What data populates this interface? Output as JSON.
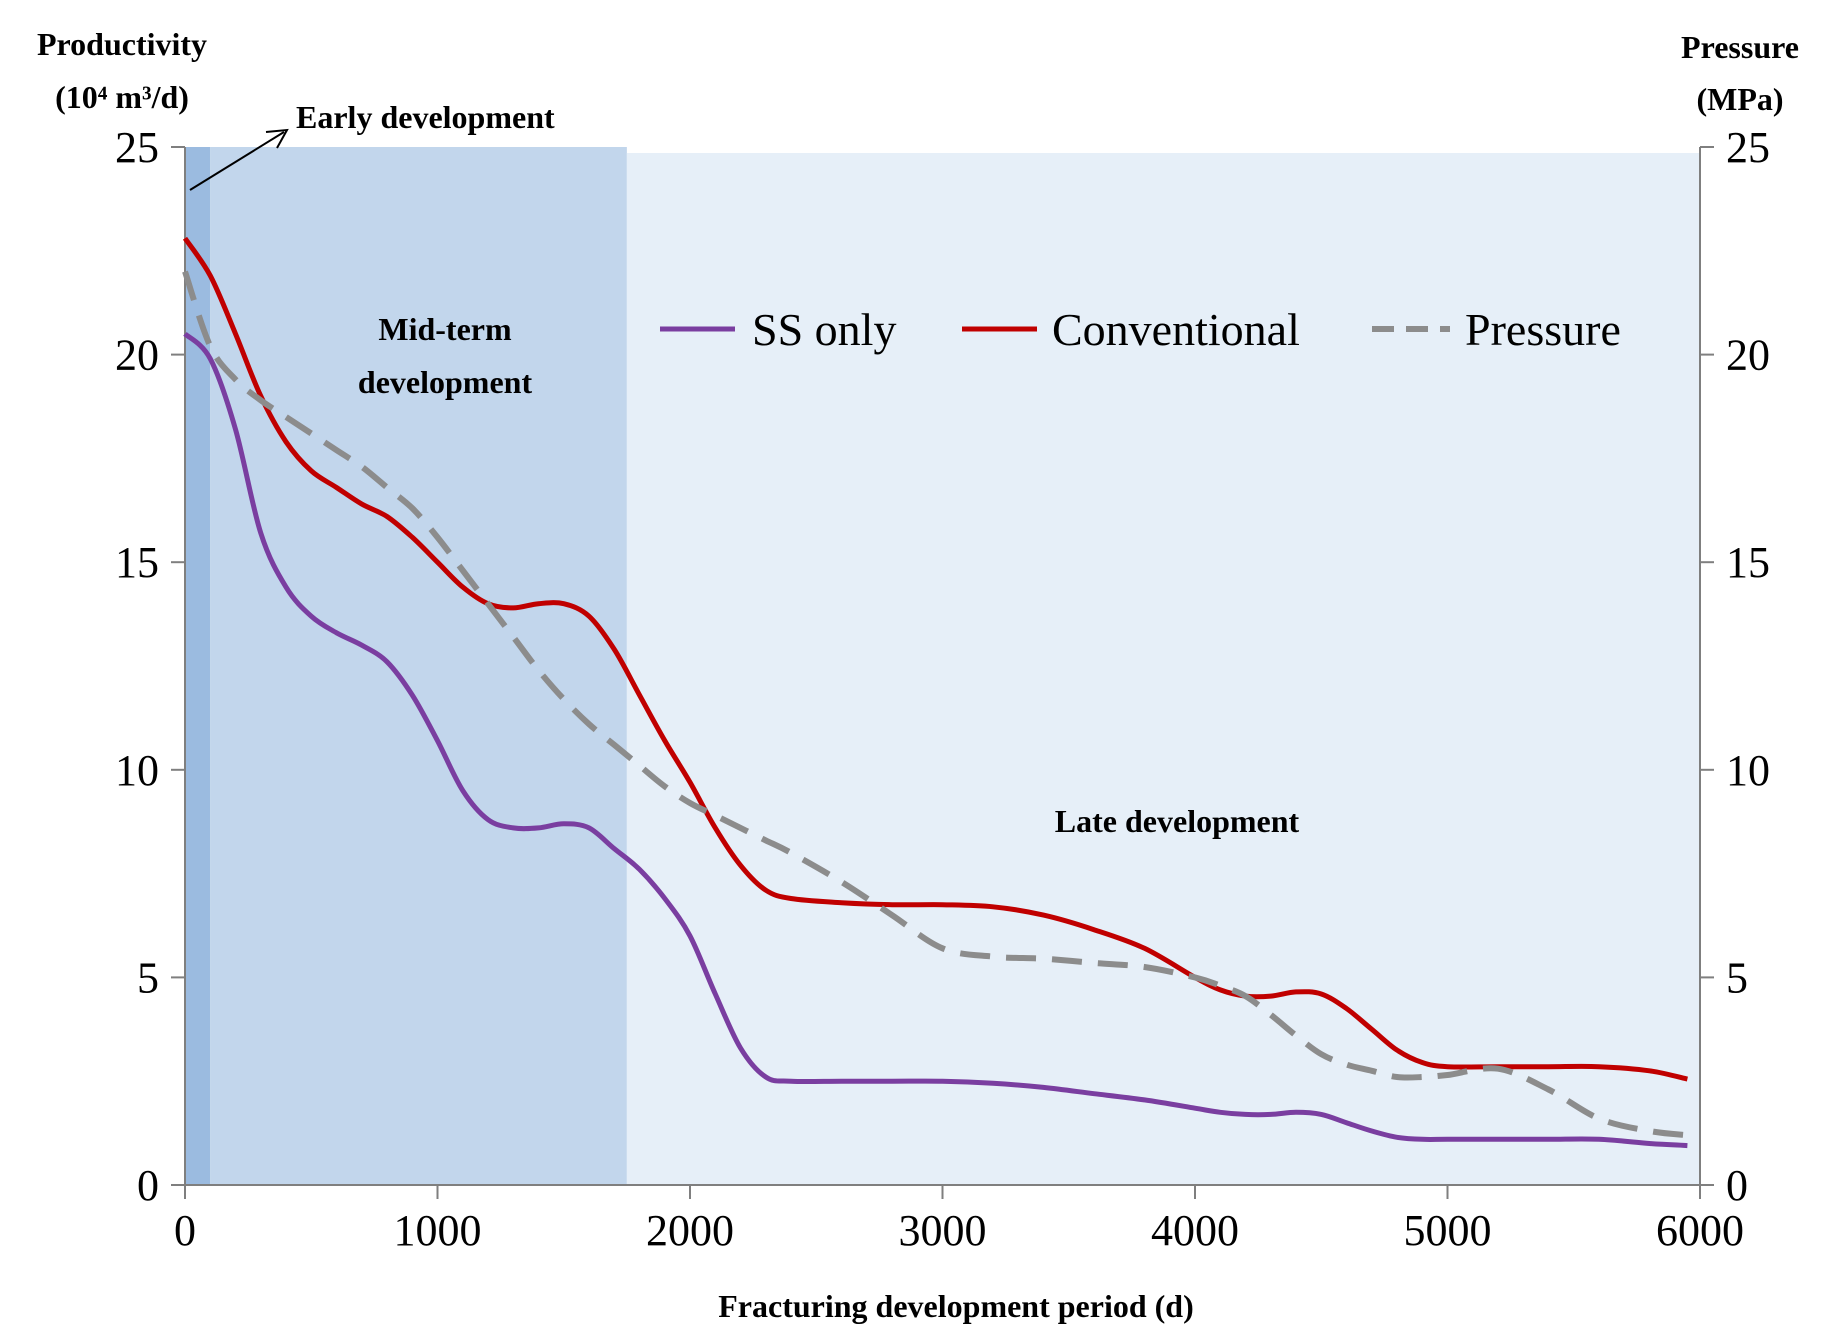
{
  "chart_data": {
    "type": "line",
    "title": "",
    "xlabel": "Fracturing development period (d)",
    "ylabel_left": [
      "Productivity",
      "(10⁴ m³/d)"
    ],
    "ylabel_right": [
      "Pressure",
      "(MPa)"
    ],
    "xlim": [
      0,
      6000
    ],
    "ylim": [
      0,
      25
    ],
    "ylim_right": [
      0,
      25
    ],
    "x_ticks": [
      0,
      1000,
      2000,
      3000,
      4000,
      5000,
      6000
    ],
    "y_ticks": [
      0,
      5,
      10,
      15,
      20,
      25
    ],
    "y_ticks_right": [
      0,
      5,
      10,
      15,
      20,
      25
    ],
    "phases": [
      {
        "name": "Early development",
        "start": 0,
        "end": 100,
        "color": "#9bbbe0"
      },
      {
        "name": "Mid-term development",
        "start": 100,
        "end": 1750,
        "color": "#c2d6ec"
      },
      {
        "name": "Late development",
        "start": 1750,
        "end": 6000,
        "color": "#e6eff8"
      }
    ],
    "phase_labels": {
      "early": "Early development",
      "mid_line1": "Mid-term",
      "mid_line2": "development",
      "late": "Late development"
    },
    "legend_position": "top-right",
    "series": [
      {
        "name": "SS only",
        "color": "#7a3ea0",
        "dash": "solid",
        "axis": "left",
        "x": [
          0,
          100,
          200,
          300,
          400,
          500,
          600,
          700,
          800,
          900,
          1000,
          1100,
          1200,
          1300,
          1400,
          1500,
          1600,
          1700,
          1800,
          1900,
          2000,
          2100,
          2200,
          2300,
          2400,
          2600,
          2800,
          3000,
          3200,
          3400,
          3600,
          3800,
          4000,
          4100,
          4200,
          4300,
          4400,
          4500,
          4600,
          4700,
          4800,
          4900,
          5000,
          5200,
          5400,
          5600,
          5800,
          5950
        ],
        "values": [
          20.5,
          19.9,
          18.2,
          15.7,
          14.4,
          13.7,
          13.3,
          13.0,
          12.6,
          11.8,
          10.7,
          9.5,
          8.8,
          8.6,
          8.6,
          8.7,
          8.6,
          8.1,
          7.6,
          6.9,
          6.0,
          4.6,
          3.3,
          2.6,
          2.5,
          2.5,
          2.5,
          2.5,
          2.45,
          2.35,
          2.2,
          2.05,
          1.85,
          1.75,
          1.7,
          1.7,
          1.75,
          1.7,
          1.5,
          1.3,
          1.15,
          1.1,
          1.1,
          1.1,
          1.1,
          1.1,
          1.0,
          0.95
        ]
      },
      {
        "name": "Conventional",
        "color": "#c00000",
        "dash": "solid",
        "axis": "left",
        "x": [
          0,
          100,
          200,
          300,
          400,
          500,
          600,
          700,
          800,
          900,
          1000,
          1100,
          1200,
          1300,
          1400,
          1500,
          1600,
          1700,
          1800,
          1900,
          2000,
          2100,
          2200,
          2300,
          2400,
          2600,
          2800,
          3000,
          3200,
          3400,
          3600,
          3800,
          4000,
          4100,
          4200,
          4300,
          4400,
          4500,
          4600,
          4700,
          4800,
          4900,
          5000,
          5200,
          5400,
          5600,
          5800,
          5950
        ],
        "values": [
          22.8,
          21.9,
          20.5,
          19.0,
          17.9,
          17.2,
          16.8,
          16.4,
          16.1,
          15.6,
          15.0,
          14.4,
          14.0,
          13.9,
          14.0,
          14.0,
          13.7,
          12.9,
          11.8,
          10.7,
          9.7,
          8.6,
          7.7,
          7.1,
          6.9,
          6.8,
          6.75,
          6.75,
          6.7,
          6.5,
          6.15,
          5.7,
          5.0,
          4.7,
          4.55,
          4.55,
          4.65,
          4.6,
          4.25,
          3.75,
          3.25,
          2.95,
          2.85,
          2.85,
          2.85,
          2.85,
          2.75,
          2.55
        ]
      },
      {
        "name": "Pressure",
        "color": "#8c8c8c",
        "dash": "dashed",
        "axis": "right",
        "x": [
          0,
          100,
          200,
          300,
          400,
          500,
          600,
          700,
          800,
          900,
          1000,
          1100,
          1200,
          1300,
          1400,
          1500,
          1600,
          1700,
          1800,
          1900,
          2000,
          2100,
          2200,
          2300,
          2400,
          2600,
          2800,
          3000,
          3200,
          3400,
          3600,
          3800,
          4000,
          4100,
          4200,
          4300,
          4400,
          4500,
          4600,
          4700,
          4800,
          4900,
          5000,
          5200,
          5400,
          5600,
          5800,
          5950
        ],
        "values": [
          22.0,
          20.2,
          19.4,
          18.9,
          18.5,
          18.1,
          17.7,
          17.3,
          16.8,
          16.3,
          15.6,
          14.8,
          14.0,
          13.2,
          12.4,
          11.7,
          11.1,
          10.6,
          10.1,
          9.6,
          9.2,
          8.9,
          8.6,
          8.3,
          8.0,
          7.3,
          6.5,
          5.7,
          5.5,
          5.45,
          5.35,
          5.25,
          5.0,
          4.8,
          4.55,
          4.1,
          3.6,
          3.15,
          2.9,
          2.75,
          2.6,
          2.6,
          2.65,
          2.8,
          2.3,
          1.6,
          1.3,
          1.2
        ]
      }
    ]
  }
}
